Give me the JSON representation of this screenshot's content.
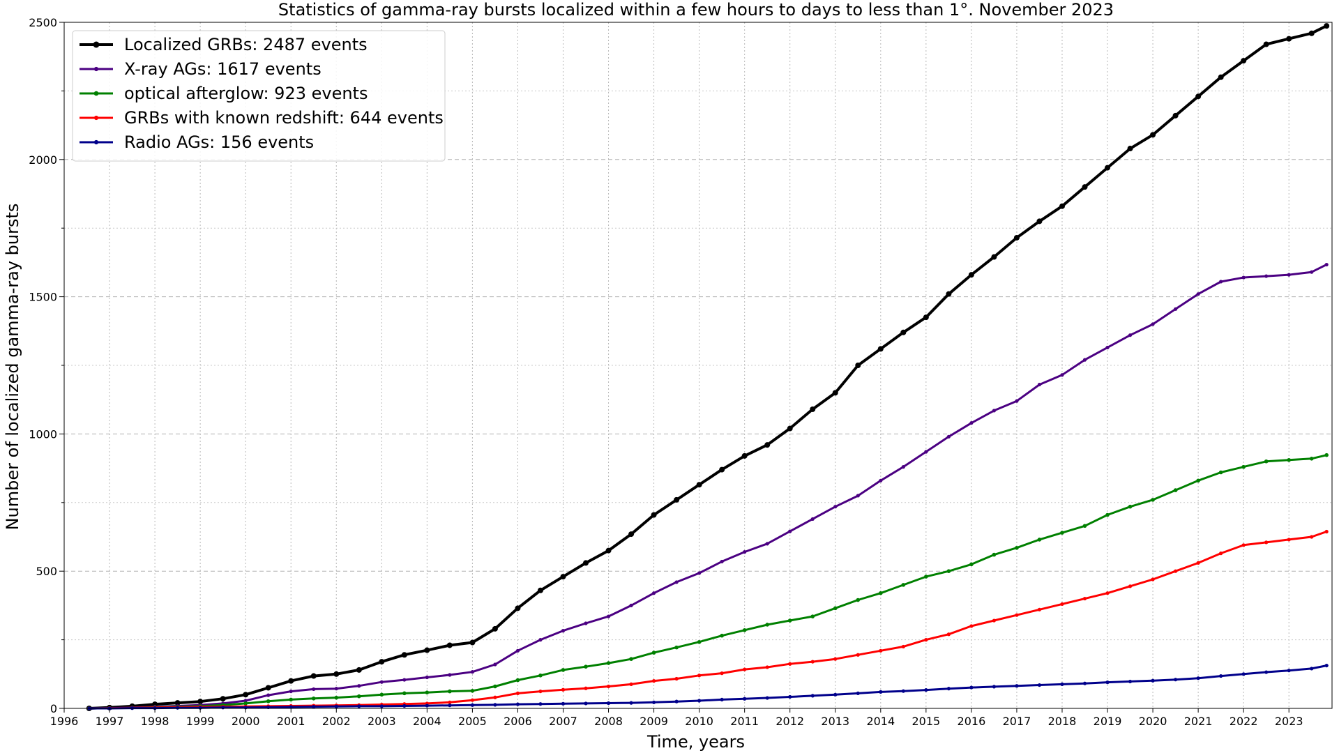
{
  "chart_data": {
    "type": "line",
    "title": "Statistics of gamma-ray bursts localized within a few hours to days to less than 1°. November 2023",
    "xlabel": "Time, years",
    "ylabel": "Number of localized gamma-ray bursts",
    "xlim": [
      1996,
      2023.95
    ],
    "ylim": [
      0,
      2500
    ],
    "x_ticks": [
      "1996",
      "1997",
      "1998",
      "1999",
      "2000",
      "2001",
      "2002",
      "2003",
      "2004",
      "2005",
      "2006",
      "2007",
      "2008",
      "2009",
      "2010",
      "2011",
      "2012",
      "2013",
      "2014",
      "2015",
      "2016",
      "2017",
      "2018",
      "2019",
      "2020",
      "2021",
      "2022",
      "2023"
    ],
    "y_ticks": [
      "0",
      "500",
      "1000",
      "1500",
      "2000",
      "2500"
    ],
    "grid": true,
    "legend_position": "top-left",
    "series": [
      {
        "name": "Localized GRBs: 2487 events",
        "color": "#000000",
        "x": [
          1996.55,
          1997.0,
          1997.5,
          1998.0,
          1998.5,
          1999.0,
          1999.5,
          2000.0,
          2000.5,
          2001.0,
          2001.5,
          2002.0,
          2002.5,
          2003.0,
          2003.5,
          2004.0,
          2004.5,
          2005.0,
          2005.5,
          2006.0,
          2006.5,
          2007.0,
          2007.5,
          2008.0,
          2008.5,
          2009.0,
          2009.5,
          2010.0,
          2010.5,
          2011.0,
          2011.5,
          2012.0,
          2012.5,
          2013.0,
          2013.5,
          2014.0,
          2014.5,
          2015.0,
          2015.5,
          2016.0,
          2016.5,
          2017.0,
          2017.5,
          2018.0,
          2018.5,
          2019.0,
          2019.5,
          2020.0,
          2020.5,
          2021.0,
          2021.5,
          2022.0,
          2022.5,
          2023.0,
          2023.5,
          2023.83
        ],
        "y": [
          0,
          3,
          8,
          15,
          20,
          25,
          35,
          50,
          75,
          100,
          118,
          125,
          140,
          170,
          195,
          212,
          230,
          240,
          290,
          365,
          430,
          480,
          530,
          575,
          635,
          705,
          760,
          815,
          870,
          920,
          960,
          1020,
          1090,
          1150,
          1250,
          1310,
          1370,
          1425,
          1510,
          1580,
          1645,
          1715,
          1775,
          1830,
          1900,
          1970,
          2040,
          2090,
          2160,
          2230,
          2300,
          2360,
          2420,
          2440,
          2460,
          2487
        ]
      },
      {
        "name": "X-ray AGs: 1617 events",
        "color": "#4b0082",
        "x": [
          1996.55,
          1997.0,
          1997.5,
          1998.0,
          1998.5,
          1999.0,
          1999.5,
          2000.0,
          2000.5,
          2001.0,
          2001.5,
          2002.0,
          2002.5,
          2003.0,
          2003.5,
          2004.0,
          2004.5,
          2005.0,
          2005.5,
          2006.0,
          2006.5,
          2007.0,
          2007.5,
          2008.0,
          2008.5,
          2009.0,
          2009.5,
          2010.0,
          2010.5,
          2011.0,
          2011.5,
          2012.0,
          2012.5,
          2013.0,
          2013.5,
          2014.0,
          2014.5,
          2015.0,
          2015.5,
          2016.0,
          2016.5,
          2017.0,
          2017.5,
          2018.0,
          2018.5,
          2019.0,
          2019.5,
          2020.0,
          2020.5,
          2021.0,
          2021.5,
          2022.0,
          2022.5,
          2023.0,
          2023.5,
          2023.83
        ],
        "y": [
          0,
          1,
          3,
          6,
          9,
          12,
          18,
          28,
          48,
          62,
          70,
          72,
          82,
          96,
          104,
          113,
          122,
          133,
          160,
          210,
          250,
          283,
          310,
          335,
          375,
          420,
          460,
          493,
          535,
          570,
          600,
          645,
          690,
          735,
          775,
          830,
          880,
          935,
          990,
          1040,
          1085,
          1120,
          1180,
          1215,
          1270,
          1315,
          1360,
          1400,
          1455,
          1510,
          1555,
          1570,
          1575,
          1580,
          1590,
          1617
        ]
      },
      {
        "name": "optical afterglow: 923 events",
        "color": "#008000",
        "x": [
          1996.55,
          1997.0,
          1997.5,
          1998.0,
          1998.5,
          1999.0,
          1999.5,
          2000.0,
          2000.5,
          2001.0,
          2001.5,
          2002.0,
          2002.5,
          2003.0,
          2003.5,
          2004.0,
          2004.5,
          2005.0,
          2005.5,
          2006.0,
          2006.5,
          2007.0,
          2007.5,
          2008.0,
          2008.5,
          2009.0,
          2009.5,
          2010.0,
          2010.5,
          2011.0,
          2011.5,
          2012.0,
          2012.5,
          2013.0,
          2013.5,
          2014.0,
          2014.5,
          2015.0,
          2015.5,
          2016.0,
          2016.5,
          2017.0,
          2017.5,
          2018.0,
          2018.5,
          2019.0,
          2019.5,
          2020.0,
          2020.5,
          2021.0,
          2021.5,
          2022.0,
          2022.5,
          2023.0,
          2023.5,
          2023.83
        ],
        "y": [
          0,
          1,
          2,
          4,
          6,
          8,
          12,
          18,
          26,
          32,
          36,
          39,
          44,
          50,
          55,
          58,
          62,
          64,
          80,
          103,
          120,
          140,
          152,
          165,
          180,
          203,
          222,
          242,
          265,
          285,
          305,
          320,
          335,
          365,
          395,
          420,
          450,
          480,
          500,
          525,
          560,
          585,
          615,
          640,
          665,
          705,
          735,
          760,
          795,
          830,
          860,
          880,
          900,
          905,
          910,
          923
        ]
      },
      {
        "name": "GRBs with known redshift: 644 events",
        "color": "#ff0000",
        "x": [
          1996.55,
          1997.0,
          1997.5,
          1998.0,
          1998.5,
          1999.0,
          1999.5,
          2000.0,
          2000.5,
          2001.0,
          2001.5,
          2002.0,
          2002.5,
          2003.0,
          2003.5,
          2004.0,
          2004.5,
          2005.0,
          2005.5,
          2006.0,
          2006.5,
          2007.0,
          2007.5,
          2008.0,
          2008.5,
          2009.0,
          2009.5,
          2010.0,
          2010.5,
          2011.0,
          2011.5,
          2012.0,
          2012.5,
          2013.0,
          2013.5,
          2014.0,
          2014.5,
          2015.0,
          2015.5,
          2016.0,
          2016.5,
          2017.0,
          2017.5,
          2018.0,
          2018.5,
          2019.0,
          2019.5,
          2020.0,
          2020.5,
          2021.0,
          2021.5,
          2022.0,
          2022.5,
          2023.0,
          2023.5,
          2023.83
        ],
        "y": [
          0,
          1,
          2,
          3,
          4,
          5,
          6,
          7,
          8,
          9,
          10,
          11,
          12,
          14,
          16,
          18,
          22,
          30,
          40,
          55,
          62,
          68,
          73,
          80,
          88,
          100,
          108,
          120,
          128,
          142,
          150,
          162,
          170,
          180,
          195,
          210,
          225,
          250,
          270,
          300,
          320,
          340,
          360,
          380,
          400,
          420,
          445,
          470,
          500,
          530,
          565,
          595,
          605,
          615,
          625,
          644
        ]
      },
      {
        "name": "Radio AGs: 156 events",
        "color": "#00008b",
        "x": [
          1996.55,
          1997.0,
          1997.5,
          1998.0,
          1998.5,
          1999.0,
          1999.5,
          2000.0,
          2000.5,
          2001.0,
          2001.5,
          2002.0,
          2002.5,
          2003.0,
          2003.5,
          2004.0,
          2004.5,
          2005.0,
          2005.5,
          2006.0,
          2006.5,
          2007.0,
          2007.5,
          2008.0,
          2008.5,
          2009.0,
          2009.5,
          2010.0,
          2010.5,
          2011.0,
          2011.5,
          2012.0,
          2012.5,
          2013.0,
          2013.5,
          2014.0,
          2014.5,
          2015.0,
          2015.5,
          2016.0,
          2016.5,
          2017.0,
          2017.5,
          2018.0,
          2018.5,
          2019.0,
          2019.5,
          2020.0,
          2020.5,
          2021.0,
          2021.5,
          2022.0,
          2022.5,
          2023.0,
          2023.5,
          2023.83
        ],
        "y": [
          0,
          0,
          1,
          1,
          2,
          2,
          3,
          3,
          4,
          5,
          6,
          7,
          8,
          8,
          9,
          10,
          11,
          12,
          13,
          15,
          16,
          17,
          18,
          19,
          20,
          22,
          25,
          28,
          32,
          35,
          38,
          42,
          46,
          50,
          55,
          60,
          63,
          67,
          72,
          76,
          79,
          82,
          85,
          88,
          91,
          95,
          98,
          101,
          105,
          110,
          118,
          125,
          132,
          138,
          145,
          156
        ]
      }
    ]
  }
}
